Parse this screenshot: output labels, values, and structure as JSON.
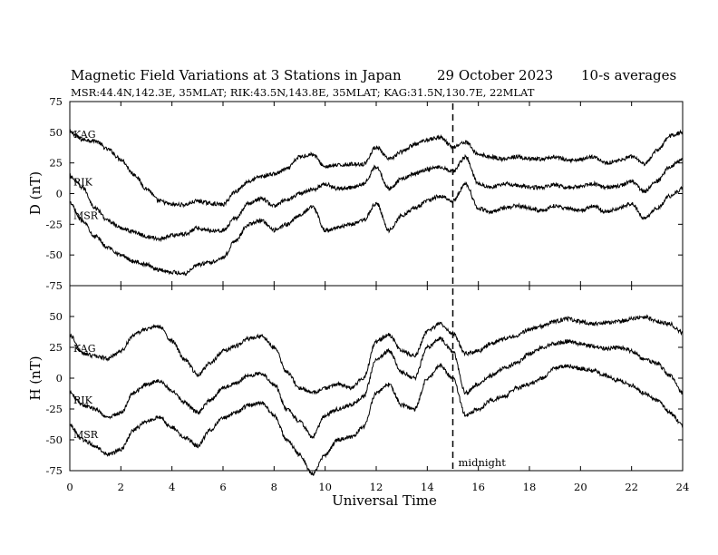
{
  "header": {
    "title": "Magnetic Field Variations at 3 Stations in Japan",
    "date": "29 October 2023",
    "averaging": "10-s averages",
    "stations_line": "MSR:44.4N,142.3E, 35MLAT;  RIK:43.5N,143.8E, 35MLAT;  KAG:31.5N,130.7E, 22MLAT"
  },
  "chart_data": [
    {
      "type": "line",
      "panel": "top",
      "ylabel": "D (nT)",
      "ylim": [
        -75,
        75
      ],
      "yticks": [
        75,
        50,
        25,
        0,
        -25,
        -50,
        -75
      ],
      "xlim": [
        0,
        24
      ],
      "series": [
        {
          "name": "KAG",
          "x": [
            0,
            0.5,
            1,
            1.5,
            2,
            2.5,
            3,
            3.5,
            4,
            4.5,
            5,
            5.5,
            6,
            6.5,
            7,
            7.5,
            8,
            8.5,
            9,
            9.5,
            10,
            10.5,
            11,
            11.5,
            12,
            12.5,
            13,
            13.5,
            14,
            14.5,
            15,
            15.5,
            16,
            16.5,
            17,
            17.5,
            18,
            18.5,
            19,
            19.5,
            20,
            20.5,
            21,
            21.5,
            22,
            22.5,
            23,
            23.5,
            24
          ],
          "values": [
            50,
            44,
            43,
            36,
            28,
            16,
            4,
            -6,
            -9,
            -9,
            -6,
            -8,
            -9,
            2,
            10,
            14,
            16,
            20,
            30,
            32,
            22,
            23,
            24,
            24,
            38,
            28,
            34,
            40,
            44,
            46,
            38,
            42,
            32,
            30,
            28,
            30,
            28,
            28,
            30,
            27,
            28,
            30,
            25,
            27,
            30,
            24,
            35,
            47,
            50
          ]
        },
        {
          "name": "RIK",
          "x": [
            0,
            0.5,
            1,
            1.5,
            2,
            2.5,
            3,
            3.5,
            4,
            4.5,
            5,
            5.5,
            6,
            6.5,
            7,
            7.5,
            8,
            8.5,
            9,
            9.5,
            10,
            10.5,
            11,
            11.5,
            12,
            12.5,
            13,
            13.5,
            14,
            14.5,
            15,
            15.5,
            16,
            16.5,
            17,
            17.5,
            18,
            18.5,
            19,
            19.5,
            20,
            20.5,
            21,
            21.5,
            22,
            22.5,
            23,
            23.5,
            24
          ],
          "values": [
            14,
            5,
            -12,
            -22,
            -28,
            -31,
            -35,
            -37,
            -34,
            -33,
            -28,
            -30,
            -30,
            -20,
            -8,
            -4,
            -10,
            -5,
            0,
            3,
            8,
            4,
            5,
            8,
            22,
            4,
            12,
            16,
            20,
            22,
            18,
            30,
            8,
            5,
            8,
            7,
            5,
            5,
            7,
            5,
            6,
            8,
            5,
            6,
            10,
            2,
            10,
            22,
            28
          ]
        },
        {
          "name": "MSR",
          "x": [
            0,
            0.5,
            1,
            1.5,
            2,
            2.5,
            3,
            3.5,
            4,
            4.5,
            5,
            5.5,
            6,
            6.5,
            7,
            7.5,
            8,
            8.5,
            9,
            9.5,
            10,
            10.5,
            11,
            11.5,
            12,
            12.5,
            13,
            13.5,
            14,
            14.5,
            15,
            15.5,
            16,
            16.5,
            17,
            17.5,
            18,
            18.5,
            19,
            19.5,
            20,
            20.5,
            21,
            21.5,
            22,
            22.5,
            23,
            23.5,
            24
          ],
          "values": [
            -8,
            -22,
            -35,
            -44,
            -50,
            -55,
            -58,
            -62,
            -64,
            -65,
            -58,
            -56,
            -52,
            -38,
            -25,
            -22,
            -30,
            -25,
            -18,
            -10,
            -30,
            -28,
            -25,
            -22,
            -8,
            -30,
            -18,
            -12,
            -6,
            -2,
            -6,
            8,
            -12,
            -15,
            -12,
            -10,
            -12,
            -14,
            -10,
            -12,
            -14,
            -10,
            -15,
            -12,
            -8,
            -20,
            -12,
            -2,
            4
          ]
        }
      ]
    },
    {
      "type": "line",
      "panel": "bottom",
      "ylabel": "H (nT)",
      "ylim": [
        -75,
        75
      ],
      "yticks": [
        50,
        25,
        0,
        -25,
        -50,
        -75
      ],
      "xlim": [
        0,
        24
      ],
      "xticks": [
        0,
        2,
        4,
        6,
        8,
        10,
        12,
        14,
        16,
        18,
        20,
        22,
        24
      ],
      "xlabel": "Universal Time",
      "annotation": {
        "text": "midnight",
        "x": 15
      },
      "series": [
        {
          "name": "KAG",
          "x": [
            0,
            0.5,
            1,
            1.5,
            2,
            2.5,
            3,
            3.5,
            4,
            4.5,
            5,
            5.5,
            6,
            6.5,
            7,
            7.5,
            8,
            8.5,
            9,
            9.5,
            10,
            10.5,
            11,
            11.5,
            12,
            12.5,
            13,
            13.5,
            14,
            14.5,
            15,
            15.5,
            16,
            16.5,
            17,
            17.5,
            18,
            18.5,
            19,
            19.5,
            20,
            20.5,
            21,
            21.5,
            22,
            22.5,
            23,
            23.5,
            24
          ],
          "values": [
            35,
            20,
            18,
            16,
            22,
            35,
            40,
            42,
            30,
            15,
            3,
            12,
            22,
            26,
            32,
            34,
            25,
            5,
            -8,
            -12,
            -8,
            -5,
            -8,
            0,
            30,
            35,
            22,
            18,
            38,
            44,
            36,
            20,
            22,
            28,
            32,
            34,
            40,
            42,
            46,
            48,
            46,
            44,
            45,
            46,
            48,
            50,
            46,
            44,
            37
          ]
        },
        {
          "name": "RIK",
          "x": [
            0,
            0.5,
            1,
            1.5,
            2,
            2.5,
            3,
            3.5,
            4,
            4.5,
            5,
            5.5,
            6,
            6.5,
            7,
            7.5,
            8,
            8.5,
            9,
            9.5,
            10,
            10.5,
            11,
            11.5,
            12,
            12.5,
            13,
            13.5,
            14,
            14.5,
            15,
            15.5,
            16,
            16.5,
            17,
            17.5,
            18,
            18.5,
            19,
            19.5,
            20,
            20.5,
            21,
            21.5,
            22,
            22.5,
            23,
            23.5,
            24
          ],
          "values": [
            -12,
            -22,
            -25,
            -32,
            -28,
            -12,
            -5,
            -2,
            -10,
            -20,
            -28,
            -18,
            -8,
            -4,
            2,
            4,
            -5,
            -25,
            -35,
            -48,
            -30,
            -25,
            -22,
            -15,
            15,
            22,
            5,
            0,
            25,
            32,
            22,
            -12,
            -5,
            2,
            8,
            12,
            20,
            25,
            28,
            30,
            28,
            26,
            24,
            25,
            22,
            15,
            12,
            2,
            -12
          ]
        },
        {
          "name": "MSR",
          "x": [
            0,
            0.5,
            1,
            1.5,
            2,
            2.5,
            3,
            3.5,
            4,
            4.5,
            5,
            5.5,
            6,
            6.5,
            7,
            7.5,
            8,
            8.5,
            9,
            9.5,
            10,
            10.5,
            11,
            11.5,
            12,
            12.5,
            13,
            13.5,
            14,
            14.5,
            15,
            15.5,
            16,
            16.5,
            17,
            17.5,
            18,
            18.5,
            19,
            19.5,
            20,
            20.5,
            21,
            21.5,
            22,
            22.5,
            23,
            23.5,
            24
          ],
          "values": [
            -38,
            -50,
            -55,
            -62,
            -58,
            -42,
            -35,
            -32,
            -40,
            -48,
            -55,
            -42,
            -32,
            -28,
            -22,
            -20,
            -30,
            -50,
            -62,
            -78,
            -62,
            -50,
            -48,
            -40,
            -12,
            -5,
            -22,
            -25,
            0,
            10,
            0,
            -30,
            -25,
            -18,
            -15,
            -8,
            -5,
            0,
            8,
            10,
            8,
            6,
            2,
            -2,
            -6,
            -12,
            -18,
            -28,
            -38
          ]
        }
      ]
    }
  ]
}
